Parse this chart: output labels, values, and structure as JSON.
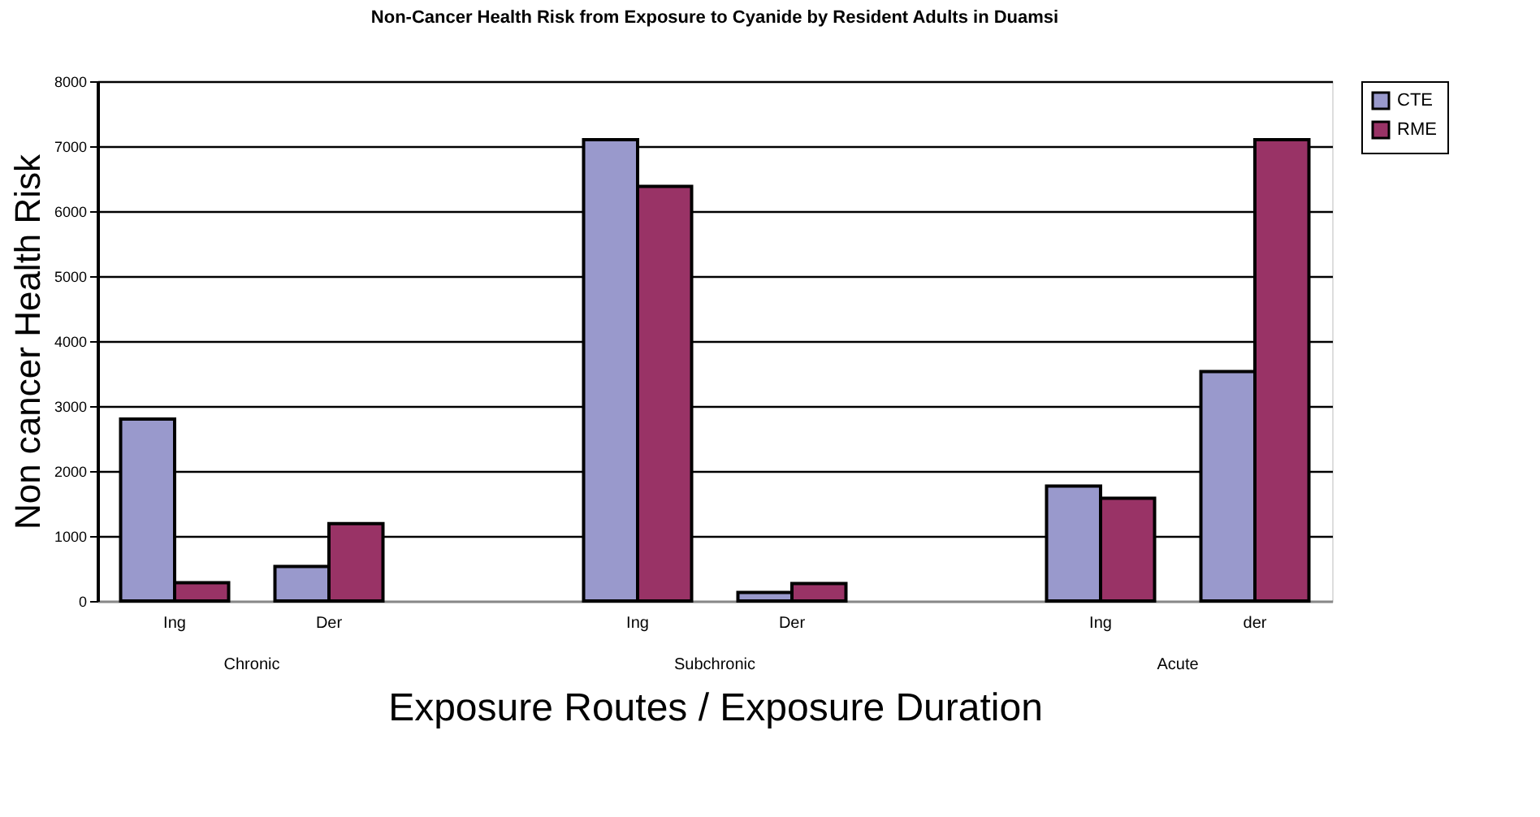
{
  "chart_data": {
    "type": "bar",
    "title": "Non-Cancer Health Risk from Exposure to Cyanide by Resident Adults in Duamsi",
    "xlabel": "Exposure Routes / Exposure Duration",
    "ylabel": "Non cancer Health Risk",
    "categories": [
      "Ing",
      "Der",
      null,
      "Ing",
      "Der",
      null,
      "Ing",
      "der"
    ],
    "series": [
      {
        "name": "CTE",
        "color": "#9999cc",
        "values": [
          2800,
          530,
          null,
          7100,
          130,
          null,
          1770,
          3530
        ]
      },
      {
        "name": "RME",
        "color": "#993366",
        "values": [
          280,
          1190,
          null,
          6380,
          270,
          null,
          1580,
          7100
        ]
      }
    ],
    "annotations": [
      "Chronic",
      "Subchronic",
      "Acute"
    ],
    "ylim": [
      0,
      8000
    ],
    "yticks": [
      0,
      1000,
      2000,
      3000,
      4000,
      5000,
      6000,
      7000,
      8000
    ],
    "grid": "y",
    "legend": "right"
  }
}
